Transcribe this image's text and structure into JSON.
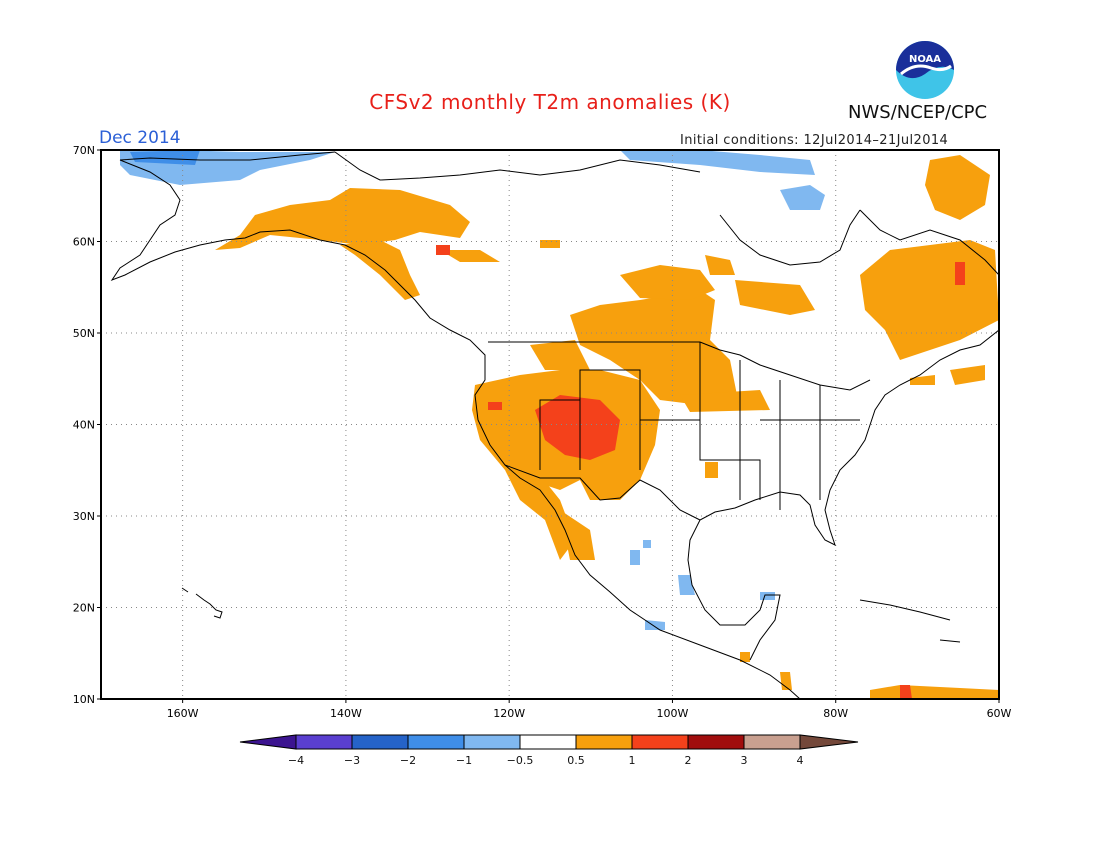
{
  "header": {
    "title": "CFSv2 monthly T2m anomalies (K)",
    "period": "Dec 2014",
    "initial_conditions": "Initial conditions: 12Jul2014–21Jul2014",
    "agency": "NWS/NCEP/CPC",
    "logo_text": "NOAA"
  },
  "map": {
    "lat_labels": [
      "70N",
      "60N",
      "50N",
      "40N",
      "30N",
      "20N",
      "10N"
    ],
    "lon_labels": [
      "160W",
      "140W",
      "120W",
      "100W",
      "80W",
      "60W"
    ]
  },
  "colorbar": {
    "labels": [
      "−4",
      "−3",
      "−2",
      "−1",
      "−0.5",
      "0.5",
      "1",
      "2",
      "3",
      "4"
    ],
    "colors": {
      "lt_neg4": "#3c1490",
      "neg4_neg3": "#5a3fd0",
      "neg3_neg2": "#2563c8",
      "neg2_neg1": "#3f8ee8",
      "neg1_neg05": "#80b8f0",
      "neg05_05": "#ffffff",
      "p05_1": "#f7a00d",
      "p1_2": "#f4411b",
      "p2_3": "#a10d0d",
      "p3_4": "#c9a090",
      "gt_4": "#74483a"
    }
  }
}
